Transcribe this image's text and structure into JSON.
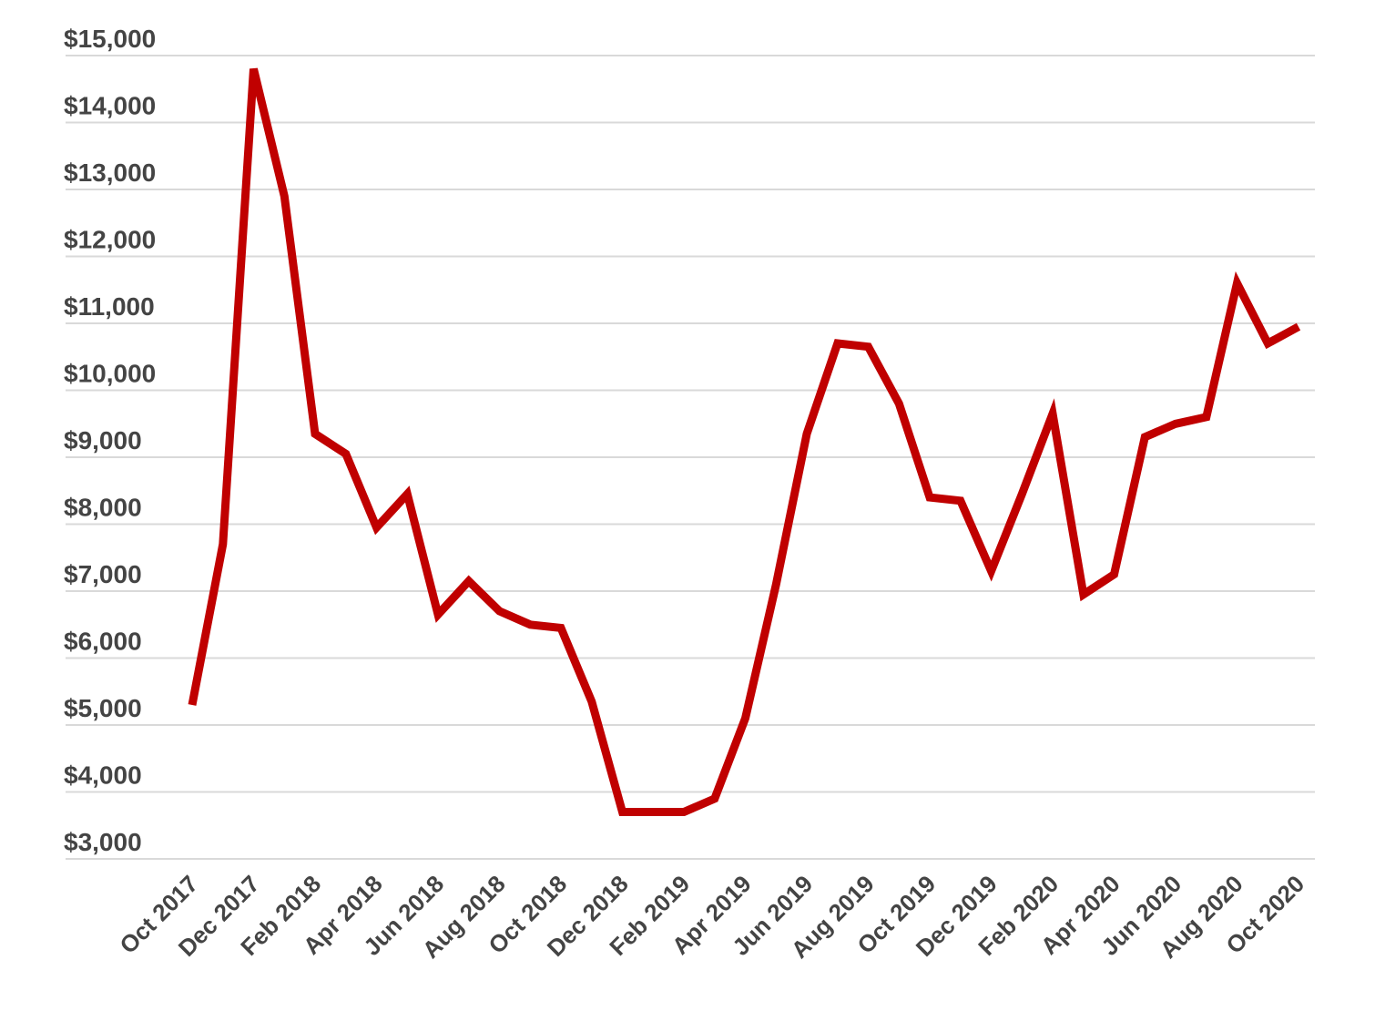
{
  "chart_data": {
    "type": "line",
    "title": "",
    "xlabel": "",
    "ylabel": "",
    "ylim": [
      3000,
      15000
    ],
    "grid": true,
    "legend": "none",
    "line_color": "#c00000",
    "yticks": [
      "$3,000",
      "$4,000",
      "$5,000",
      "$6,000",
      "$7,000",
      "$8,000",
      "$9,000",
      "$10,000",
      "$11,000",
      "$12,000",
      "$13,000",
      "$14,000",
      "$15,000"
    ],
    "ytick_values": [
      3000,
      4000,
      5000,
      6000,
      7000,
      8000,
      9000,
      10000,
      11000,
      12000,
      13000,
      14000,
      15000
    ],
    "xticks": [
      "Oct 2017",
      "Dec 2017",
      "Feb 2018",
      "Apr 2018",
      "Jun 2018",
      "Aug 2018",
      "Oct 2018",
      "Dec 2018",
      "Feb 2019",
      "Apr 2019",
      "Jun 2019",
      "Aug 2019",
      "Oct 2019",
      "Dec 2019",
      "Feb 2020",
      "Apr 2020",
      "Jun 2020",
      "Aug 2020",
      "Oct 2020"
    ],
    "x": [
      "Oct 2017",
      "Nov 2017",
      "Dec 2017",
      "Jan 2018",
      "Feb 2018",
      "Mar 2018",
      "Apr 2018",
      "May 2018",
      "Jun 2018",
      "Jul 2018",
      "Aug 2018",
      "Sep 2018",
      "Oct 2018",
      "Nov 2018",
      "Dec 2018",
      "Jan 2019",
      "Feb 2019",
      "Mar 2019",
      "Apr 2019",
      "May 2019",
      "Jun 2019",
      "Jul 2019",
      "Aug 2019",
      "Sep 2019",
      "Oct 2019",
      "Nov 2019",
      "Dec 2019",
      "Jan 2020",
      "Feb 2020",
      "Mar 2020",
      "Apr 2020",
      "May 2020",
      "Jun 2020",
      "Jul 2020",
      "Aug 2020",
      "Sep 2020",
      "Oct 2020"
    ],
    "series": [
      {
        "values": [
          5300,
          7700,
          14800,
          12900,
          9350,
          9050,
          7950,
          8450,
          6650,
          7150,
          6700,
          6500,
          6450,
          5350,
          3700,
          3700,
          3700,
          3900,
          5100,
          7100,
          9350,
          10700,
          10650,
          9800,
          8400,
          8350,
          7300,
          8450,
          9650,
          6950,
          7250,
          9300,
          9500,
          9600,
          11600,
          10700,
          10950
        ]
      }
    ]
  }
}
